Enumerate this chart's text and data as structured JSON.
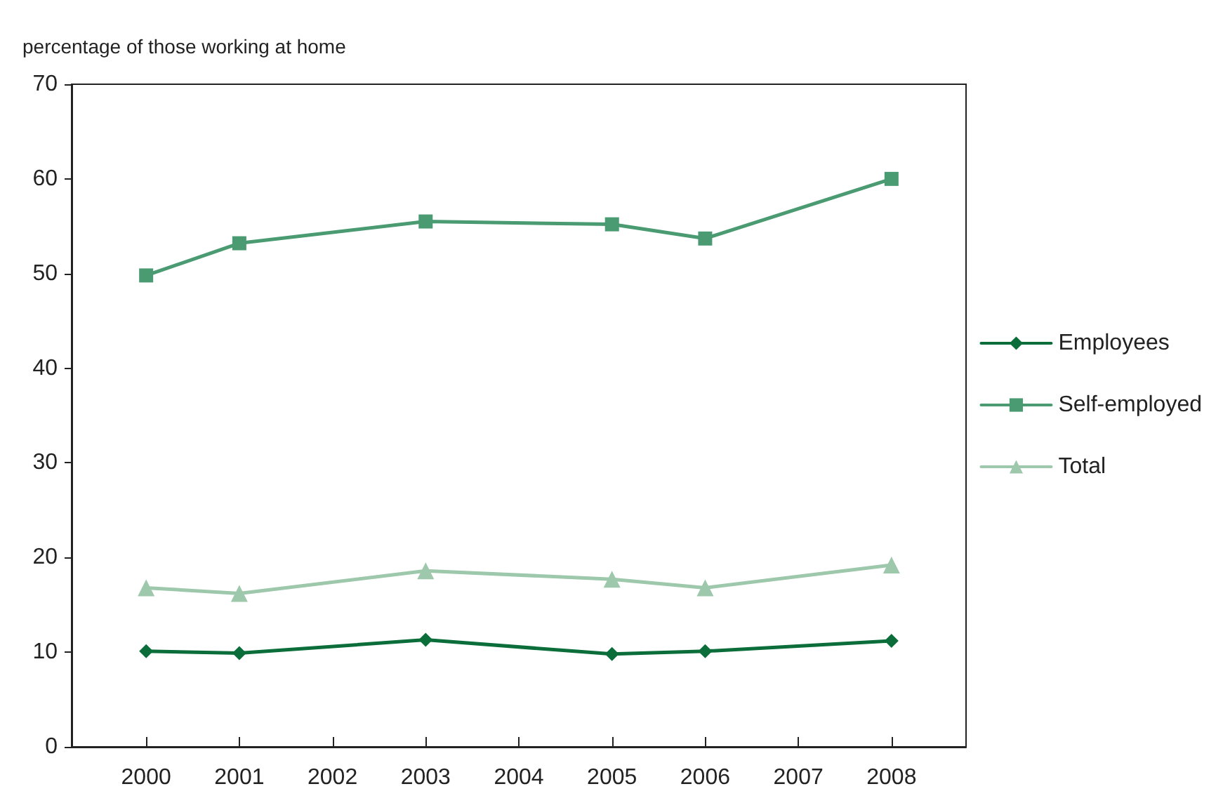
{
  "chart_data": {
    "type": "line",
    "ylabel": "percentage of those working at home",
    "xlim": [
      1999.2,
      2008.8
    ],
    "xticks": [
      2000,
      2001,
      2002,
      2003,
      2004,
      2005,
      2006,
      2007,
      2008
    ],
    "ylim": [
      0,
      70
    ],
    "yticks": [
      0,
      10,
      20,
      30,
      40,
      50,
      60,
      70
    ],
    "x": [
      2000,
      2001,
      2003,
      2005,
      2006,
      2008
    ],
    "series": [
      {
        "name": "Employees",
        "color": "#0b6e3a",
        "marker": "diamond",
        "values": [
          10.1,
          9.9,
          11.3,
          9.8,
          10.1,
          11.2
        ]
      },
      {
        "name": "Self-employed",
        "color": "#4a9a72",
        "marker": "square",
        "values": [
          49.8,
          53.2,
          55.5,
          55.2,
          53.7,
          60.0
        ]
      },
      {
        "name": "Total",
        "color": "#9dc8ab",
        "marker": "triangle",
        "values": [
          16.8,
          16.2,
          18.6,
          17.7,
          16.8,
          19.2
        ]
      }
    ],
    "grid": false,
    "legend": "right",
    "line_style": "solid"
  }
}
